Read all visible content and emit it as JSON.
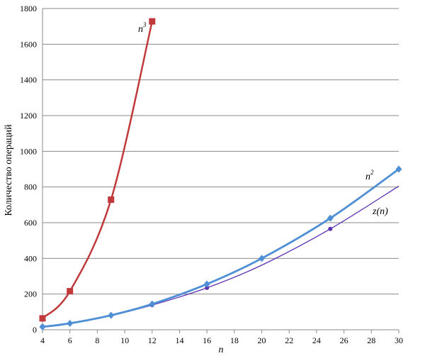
{
  "chart_data": {
    "type": "line",
    "title": "",
    "xlabel": "n",
    "ylabel": "Количество операций",
    "xlim": [
      4,
      30
    ],
    "ylim": [
      0,
      1800
    ],
    "x_ticks": [
      4,
      6,
      8,
      10,
      12,
      14,
      16,
      18,
      20,
      22,
      24,
      26,
      28,
      30
    ],
    "y_ticks": [
      0,
      200,
      400,
      600,
      800,
      1000,
      1200,
      1400,
      1600,
      1800
    ],
    "grid": "horizontal",
    "series": [
      {
        "name": "n",
        "superscript": "3",
        "color": "#c0393b",
        "marker": "square",
        "x": [
          4,
          6,
          9,
          12
        ],
        "values": [
          64,
          216,
          729,
          1728
        ]
      },
      {
        "name": "n",
        "superscript": "2",
        "color": "#4f8fd6",
        "marker": "diamond",
        "x": [
          4,
          6,
          9,
          12,
          16,
          20,
          25,
          30
        ],
        "values": [
          16,
          36,
          81,
          144,
          256,
          400,
          625,
          900
        ]
      },
      {
        "name": "z(n)",
        "superscript": "",
        "color": "#5b2fb4",
        "marker": "circle",
        "x": [
          4,
          6,
          9,
          12,
          16,
          20,
          25,
          30
        ],
        "values": [
          20,
          36,
          80,
          138,
          235,
          362,
          565,
          805
        ],
        "marked_points": [
          0,
          1,
          2,
          3,
          4,
          6
        ]
      }
    ]
  }
}
